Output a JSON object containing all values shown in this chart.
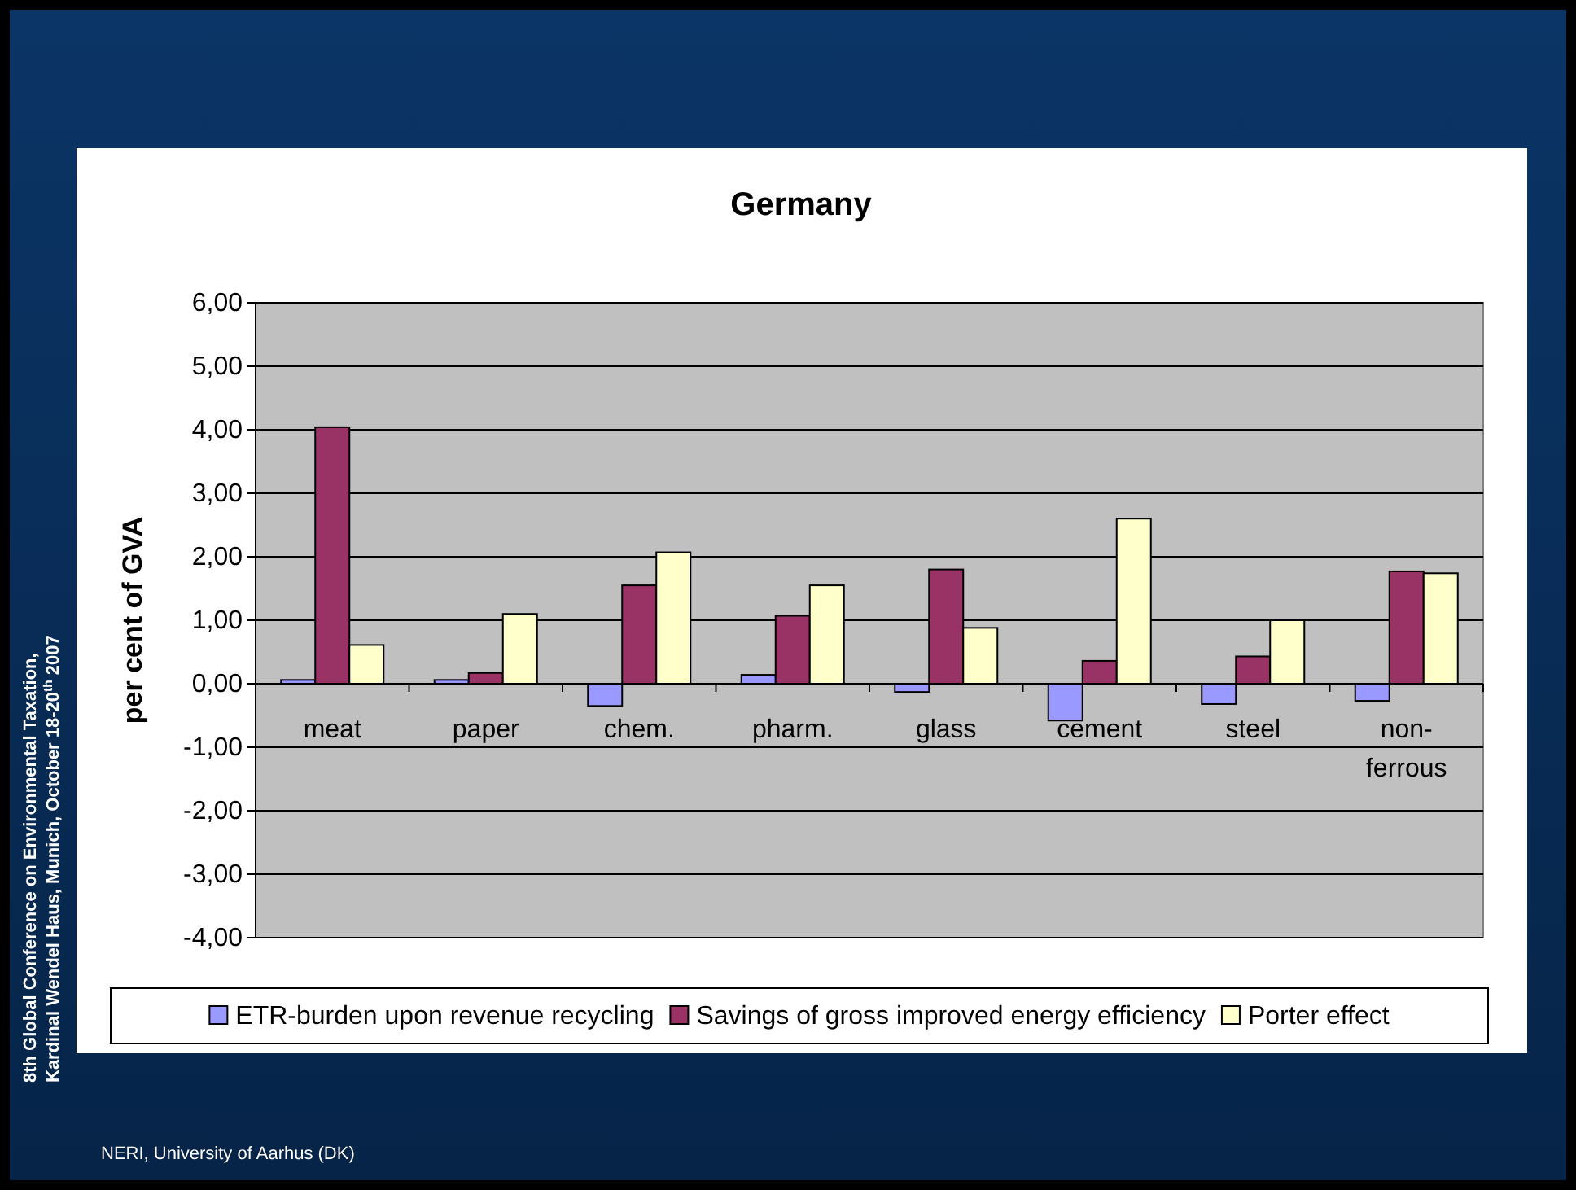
{
  "chart_data": {
    "type": "bar",
    "title": "Germany",
    "ylabel": "per cent of GVA",
    "categories": [
      "meat",
      "paper",
      "chem.",
      "pharm.",
      "glass",
      "cement",
      "steel",
      "non-ferrous"
    ],
    "series": [
      {
        "name": "ETR-burden upon revenue recycling",
        "color": "#9999ff",
        "values": [
          0.06,
          0.06,
          -0.35,
          0.14,
          -0.13,
          -0.58,
          -0.32,
          -0.27
        ]
      },
      {
        "name": "Savings of gross improved energy efficiency",
        "color": "#993366",
        "values": [
          4.04,
          0.17,
          1.55,
          1.07,
          1.8,
          0.36,
          0.43,
          1.77
        ]
      },
      {
        "name": "Porter effect",
        "color": "#ffffcc",
        "values": [
          0.61,
          1.1,
          2.07,
          1.55,
          0.88,
          2.6,
          1.0,
          1.74
        ]
      }
    ],
    "ylim": [
      -4,
      6
    ],
    "yticks": [
      {
        "value": -4,
        "label": "-4,00"
      },
      {
        "value": -3,
        "label": "-3,00"
      },
      {
        "value": -2,
        "label": "-2,00"
      },
      {
        "value": -1,
        "label": "-1,00"
      },
      {
        "value": 0,
        "label": "0,00"
      },
      {
        "value": 1,
        "label": "1,00"
      },
      {
        "value": 2,
        "label": "2,00"
      },
      {
        "value": 3,
        "label": "3,00"
      },
      {
        "value": 4,
        "label": "4,00"
      },
      {
        "value": 5,
        "label": "5,00"
      },
      {
        "value": 6,
        "label": "6,00"
      }
    ],
    "grid": "y",
    "legend": "bottom",
    "annotations": [
      "8th Global Conference on Environmental Taxation,",
      "Kardinal Wendel Haus, Munich, October 18-20$^{th}$ 2007",
      "NERI, University of Aarhus (DK)"
    ]
  }
}
